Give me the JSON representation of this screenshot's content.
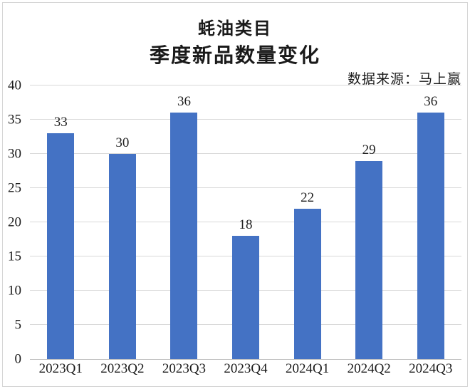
{
  "page": {
    "title_line1": "蚝油类目",
    "title_line2": "季度新品数量变化",
    "source": "数据来源：马上赢"
  },
  "chart_data": {
    "type": "bar",
    "title": "蚝油类目",
    "subtitle": "季度新品数量变化",
    "source_note": "数据来源：马上赢",
    "categories": [
      "2023Q1",
      "2023Q2",
      "2023Q3",
      "2023Q4",
      "2024Q1",
      "2024Q2",
      "2024Q3"
    ],
    "values": [
      33,
      30,
      36,
      18,
      22,
      29,
      36
    ],
    "xlabel": "",
    "ylabel": "",
    "ylim": [
      0,
      40
    ],
    "yticks": [
      0,
      5,
      10,
      15,
      20,
      25,
      30,
      35,
      40
    ],
    "grid": true,
    "data_labels": true,
    "legend": "none",
    "bar_color": "#4472C4",
    "gridline_color": "#d9d9d9",
    "axis_line_color": "#c0c0c0",
    "text_color": "#1a1a1a"
  }
}
